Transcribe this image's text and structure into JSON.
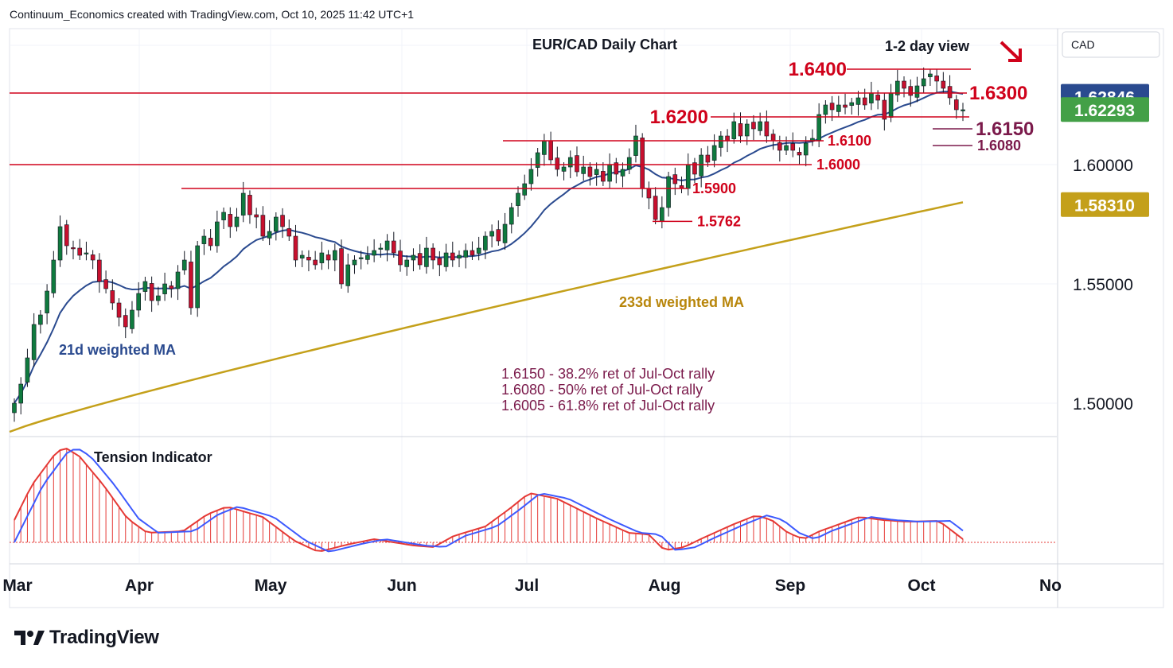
{
  "header": {
    "attribution": "Continuum_Economics created with TradingView.com, Oct 10, 2025 11:42 UTC+1"
  },
  "branding": {
    "logo_text": "TradingView"
  },
  "colors": {
    "up": "#26a69a",
    "up_dark": "#0f7a3e",
    "down": "#c8102e",
    "level": "#d0021b",
    "ma21": "#2a4a8f",
    "ma233": "#c4a01a",
    "fib": "#7b1a4b",
    "tension_bars": "#e53935",
    "current_price_bg": "#2a4a8f",
    "green_price_bg": "#43a047",
    "ma_price_bg": "#c4a01a"
  },
  "chart_data": {
    "type": "candlestick",
    "title": "EUR/CAD Daily Chart",
    "subtitle": "1-2 day view",
    "bias_icon": "down-arrow-icon",
    "currency": "CAD",
    "ylim": [
      1.4925,
      1.664
    ],
    "x_ticks": [
      "Mar",
      "Apr",
      "May",
      "Jun",
      "Jul",
      "Aug",
      "Sep",
      "Oct",
      "No"
    ],
    "y_ticks": [
      "1.60000",
      "1.55000",
      "1.50000"
    ],
    "price_tags": [
      {
        "value": 1.62846,
        "label": "1.62846",
        "style": "blue"
      },
      {
        "value": 1.62293,
        "label": "1.62293",
        "style": "green"
      },
      {
        "value": 1.5831,
        "label": "1.58310",
        "style": "gold"
      }
    ],
    "levels": [
      {
        "value": 1.64,
        "label": "1.6400"
      },
      {
        "value": 1.63,
        "label": "1.6300"
      },
      {
        "value": 1.62,
        "label": "1.6200"
      },
      {
        "value": 1.615,
        "label": "1.6150"
      },
      {
        "value": 1.61,
        "label": "1.6100"
      },
      {
        "value": 1.608,
        "label": "1.6080"
      },
      {
        "value": 1.6,
        "label": "1.6000"
      },
      {
        "value": 1.59,
        "label": "1.5900"
      },
      {
        "value": 1.5762,
        "label": "1.5762"
      }
    ],
    "ma_labels": {
      "ma21": "21d weighted MA",
      "ma233": "233d weighted MA"
    },
    "annotations": [
      "1.6150 - 38.2% ret of Jul-Oct rally",
      "1.6080 - 50% ret of Jul-Oct rally",
      "1.6005 - 61.8% ret of Jul-Oct rally"
    ],
    "indicator": {
      "name": "Tension Indicator"
    },
    "closes": [
      1.5,
      1.508,
      1.519,
      1.533,
      1.537,
      1.547,
      1.56,
      1.574,
      1.566,
      1.565,
      1.562,
      1.563,
      1.56,
      1.551,
      1.548,
      1.542,
      1.536,
      1.532,
      1.539,
      1.546,
      1.551,
      1.543,
      1.545,
      1.55,
      1.548,
      1.555,
      1.56,
      1.54,
      1.566,
      1.57,
      1.566,
      1.576,
      1.58,
      1.574,
      1.578,
      1.588,
      1.579,
      1.578,
      1.57,
      1.572,
      1.578,
      1.574,
      1.57,
      1.56,
      1.562,
      1.56,
      1.558,
      1.563,
      1.56,
      1.564,
      1.55,
      1.558,
      1.56,
      1.561,
      1.562,
      1.564,
      1.565,
      1.568,
      1.563,
      1.558,
      1.56,
      1.562,
      1.558,
      1.565,
      1.56,
      1.558,
      1.563,
      1.56,
      1.562,
      1.564,
      1.562,
      1.565,
      1.57,
      1.572,
      1.568,
      1.575,
      1.582,
      1.588,
      1.592,
      1.598,
      1.605,
      1.61,
      1.602,
      1.598,
      1.599,
      1.603,
      1.597,
      1.599,
      1.595,
      1.598,
      1.593,
      1.6,
      1.596,
      1.598,
      1.603,
      1.612,
      1.59,
      1.586,
      1.577,
      1.582,
      1.595,
      1.592,
      1.59,
      1.6,
      1.596,
      1.604,
      1.601,
      1.608,
      1.612,
      1.61,
      1.618,
      1.612,
      1.617,
      1.615,
      1.618,
      1.612,
      1.61,
      1.606,
      1.608,
      1.606,
      1.604,
      1.609,
      1.611,
      1.621,
      1.625,
      1.623,
      1.625,
      1.624,
      1.626,
      1.628,
      1.625,
      1.63,
      1.627,
      1.619,
      1.63,
      1.635,
      1.632,
      1.629,
      1.633,
      1.636,
      1.638,
      1.635,
      1.632,
      1.628,
      1.623,
      1.623
    ],
    "ma233_range": [
      1.488,
      1.5842
    ]
  }
}
